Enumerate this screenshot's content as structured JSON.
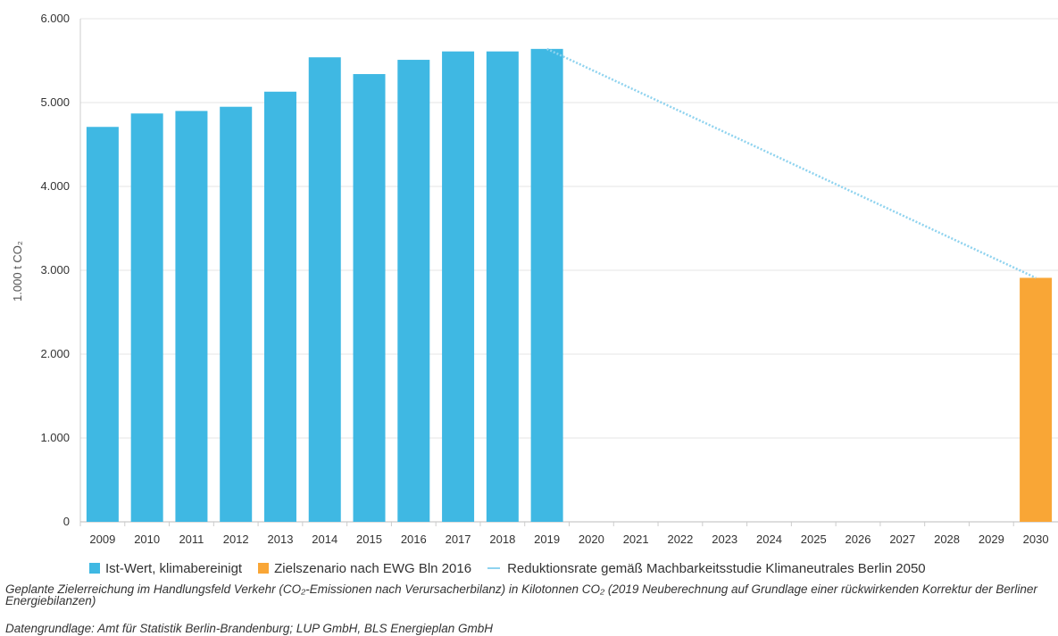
{
  "chart_data": {
    "type": "bar",
    "categories": [
      "2009",
      "2010",
      "2011",
      "2012",
      "2013",
      "2014",
      "2015",
      "2016",
      "2017",
      "2018",
      "2019",
      "2020",
      "2021",
      "2022",
      "2023",
      "2024",
      "2025",
      "2026",
      "2027",
      "2028",
      "2029",
      "2030"
    ],
    "series": [
      {
        "name": "Ist-Wert, klimabereinigt",
        "kind": "bar",
        "color": "#3fb8e3",
        "values": [
          4710,
          4870,
          4900,
          4950,
          5130,
          5540,
          5340,
          5510,
          5610,
          5610,
          5640,
          null,
          null,
          null,
          null,
          null,
          null,
          null,
          null,
          null,
          null,
          null
        ]
      },
      {
        "name": "Zielszenario nach EWG Bln 2016",
        "kind": "bar",
        "color": "#f9a636",
        "values": [
          null,
          null,
          null,
          null,
          null,
          null,
          null,
          null,
          null,
          null,
          null,
          null,
          null,
          null,
          null,
          null,
          null,
          null,
          null,
          null,
          null,
          2910
        ]
      },
      {
        "name": "Reduktionsrate gemäß Machbarkeitsstudie Klimaneutrales Berlin 2050",
        "kind": "line",
        "style": "dotted",
        "color": "#8fd3ef",
        "points": [
          {
            "x": "2019",
            "y": 5640
          },
          {
            "x": "2030",
            "y": 2910
          }
        ]
      }
    ],
    "ylabel": "1.000 t CO₂",
    "ylim": [
      0,
      6000
    ],
    "yticks": [
      0,
      1000,
      2000,
      3000,
      4000,
      5000,
      6000
    ],
    "ytick_labels": [
      "0",
      "1.000",
      "2.000",
      "3.000",
      "4.000",
      "5.000",
      "6.000"
    ],
    "grid": true,
    "legend_position": "bottom"
  },
  "caption": "Geplante Zielerreichung im Handlungsfeld Verkehr (CO₂-Emissionen nach Verursacherbilanz) in Kilotonnen CO₂ (2019 Neuberechnung auf Grundlage einer rückwirkenden Korrektur der Berliner Energiebilanzen)",
  "source": "Datengrundlage: Amt für Statistik Berlin-Brandenburg; LUP GmbH, BLS Energieplan GmbH"
}
